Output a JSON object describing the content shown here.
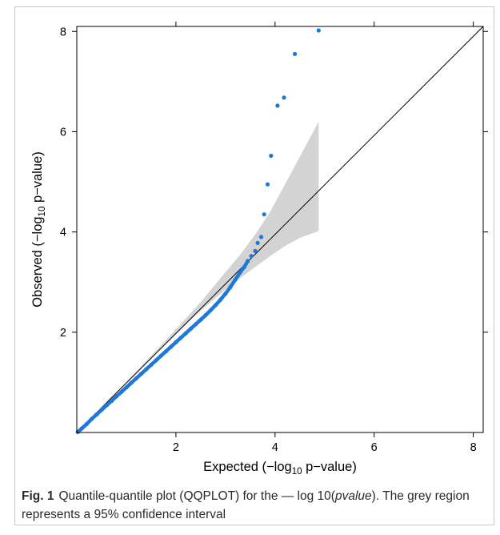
{
  "chart_data": {
    "type": "scatter",
    "xlabel_parts": [
      "Expected (−log",
      "10",
      " p−value)"
    ],
    "ylabel_parts": [
      "Observed (−log",
      "10",
      " p−value)"
    ],
    "xlim": [
      0,
      8.2
    ],
    "ylim": [
      0,
      8.1
    ],
    "x_ticks": [
      2,
      4,
      6,
      8
    ],
    "y_ticks": [
      2,
      4,
      6,
      8
    ],
    "reference_line": {
      "from": [
        0,
        0
      ],
      "to": [
        8.2,
        8.1
      ]
    },
    "confidence_band": {
      "x": [
        0,
        0.5,
        1.0,
        1.5,
        2.0,
        2.5,
        3.0,
        3.3,
        3.6,
        3.9,
        4.2,
        4.5,
        4.88
      ],
      "lower": [
        0,
        0.49,
        0.99,
        1.48,
        1.96,
        2.43,
        2.85,
        3.08,
        3.3,
        3.52,
        3.72,
        3.88,
        4.02
      ],
      "upper": [
        0,
        0.51,
        1.01,
        1.53,
        2.06,
        2.6,
        3.2,
        3.55,
        3.95,
        4.4,
        4.95,
        5.5,
        6.2
      ]
    },
    "points": {
      "color": "#1f78d8",
      "x": [
        0.02,
        0.1,
        0.2,
        0.3,
        0.4,
        0.5,
        0.6,
        0.7,
        0.8,
        0.9,
        1.0,
        1.1,
        1.2,
        1.3,
        1.4,
        1.5,
        1.6,
        1.7,
        1.8,
        1.9,
        2.0,
        2.1,
        2.2,
        2.3,
        2.4,
        2.5,
        2.6,
        2.7,
        2.8,
        2.9,
        3.0,
        3.1,
        3.2,
        3.3,
        3.38,
        3.45,
        3.52,
        3.6,
        3.65,
        3.72,
        3.78,
        3.85,
        3.92,
        4.05,
        4.18,
        4.4,
        4.88
      ],
      "y": [
        0.01,
        0.08,
        0.17,
        0.27,
        0.36,
        0.45,
        0.54,
        0.63,
        0.72,
        0.81,
        0.9,
        0.99,
        1.08,
        1.17,
        1.26,
        1.35,
        1.44,
        1.53,
        1.62,
        1.71,
        1.8,
        1.89,
        1.98,
        2.07,
        2.16,
        2.25,
        2.34,
        2.44,
        2.54,
        2.65,
        2.77,
        2.9,
        3.05,
        3.2,
        3.3,
        3.42,
        3.52,
        3.62,
        3.78,
        3.9,
        4.35,
        4.95,
        5.52,
        6.52,
        6.68,
        7.55,
        8.02
      ]
    }
  },
  "caption": {
    "label": "Fig. 1",
    "text_before": "Quantile-quantile plot (QQPLOT) for the — log 10(",
    "text_italic": "pvalue",
    "text_after": "). The grey region represents a 95% confidence interval"
  },
  "colors": {
    "band": "#d3d3d3",
    "points": "#1f78d8",
    "axis": "#000000"
  }
}
